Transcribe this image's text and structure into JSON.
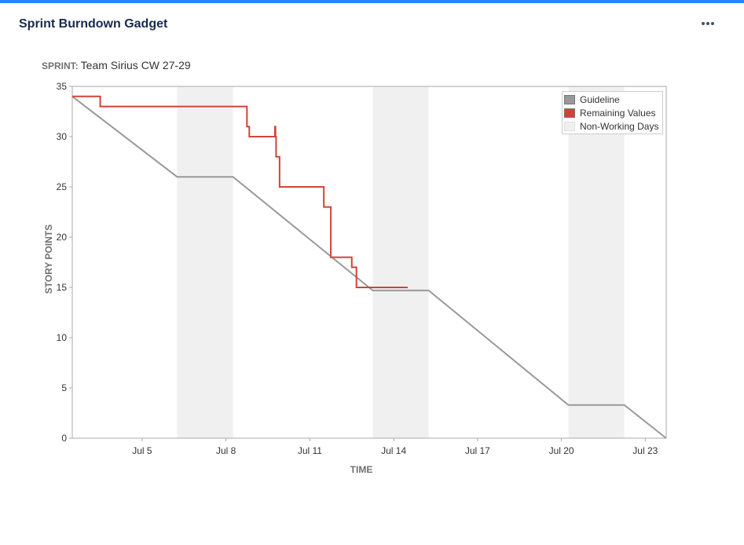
{
  "gadget": {
    "title": "Sprint Burndown Gadget"
  },
  "sprint": {
    "label": "SPRINT:",
    "name": "Team Sirius CW 27-29"
  },
  "colors": {
    "guideline": "#999999",
    "remaining": "#d04437",
    "non_working": "#f0f0f0",
    "accent": "#2684ff"
  },
  "icons": {
    "more": "more-horizontal-icon"
  },
  "chart_data": {
    "type": "line",
    "title": "",
    "xlabel": "TIME",
    "ylabel": "STORY POINTS",
    "ylim": [
      0,
      35
    ],
    "xlim": [
      "2022-07-02T12:00",
      "2022-07-23T18:00"
    ],
    "yticks": [
      0,
      5,
      10,
      15,
      20,
      25,
      30,
      35
    ],
    "xticks": [
      {
        "date": "2022-07-05",
        "label": "Jul 5"
      },
      {
        "date": "2022-07-08",
        "label": "Jul 8"
      },
      {
        "date": "2022-07-11",
        "label": "Jul 11"
      },
      {
        "date": "2022-07-14",
        "label": "Jul 14"
      },
      {
        "date": "2022-07-17",
        "label": "Jul 17"
      },
      {
        "date": "2022-07-20",
        "label": "Jul 20"
      },
      {
        "date": "2022-07-23",
        "label": "Jul 23"
      }
    ],
    "non_working_days": [
      {
        "start": "2022-07-06T06:00",
        "end": "2022-07-08T06:00"
      },
      {
        "start": "2022-07-13T06:00",
        "end": "2022-07-15T06:00"
      },
      {
        "start": "2022-07-20T06:00",
        "end": "2022-07-22T06:00"
      }
    ],
    "legend": {
      "position": "top-right",
      "items": [
        {
          "key": "guideline",
          "label": "Guideline"
        },
        {
          "key": "remaining",
          "label": "Remaining Values"
        },
        {
          "key": "non_working",
          "label": "Non-Working Days"
        }
      ]
    },
    "series": [
      {
        "name": "Guideline",
        "style": "line",
        "points": [
          [
            "2022-07-02T12:00",
            34
          ],
          [
            "2022-07-06T06:00",
            26
          ],
          [
            "2022-07-08T06:00",
            26
          ],
          [
            "2022-07-13T06:00",
            14.7
          ],
          [
            "2022-07-15T06:00",
            14.7
          ],
          [
            "2022-07-20T06:00",
            3.3
          ],
          [
            "2022-07-22T06:00",
            3.3
          ],
          [
            "2022-07-23T18:00",
            0
          ]
        ]
      },
      {
        "name": "Remaining Values",
        "style": "step",
        "points": [
          [
            "2022-07-02T12:00",
            34
          ],
          [
            "2022-07-03T12:00",
            33
          ],
          [
            "2022-07-08T18:00",
            31
          ],
          [
            "2022-07-08T20:00",
            30
          ],
          [
            "2022-07-09T18:00",
            31
          ],
          [
            "2022-07-09T18:30",
            30
          ],
          [
            "2022-07-09T19:00",
            28
          ],
          [
            "2022-07-09T22:00",
            25
          ],
          [
            "2022-07-11T12:00",
            23
          ],
          [
            "2022-07-11T18:00",
            18
          ],
          [
            "2022-07-12T12:00",
            17
          ],
          [
            "2022-07-12T16:00",
            15
          ],
          [
            "2022-07-14T12:00",
            15
          ]
        ]
      }
    ]
  }
}
